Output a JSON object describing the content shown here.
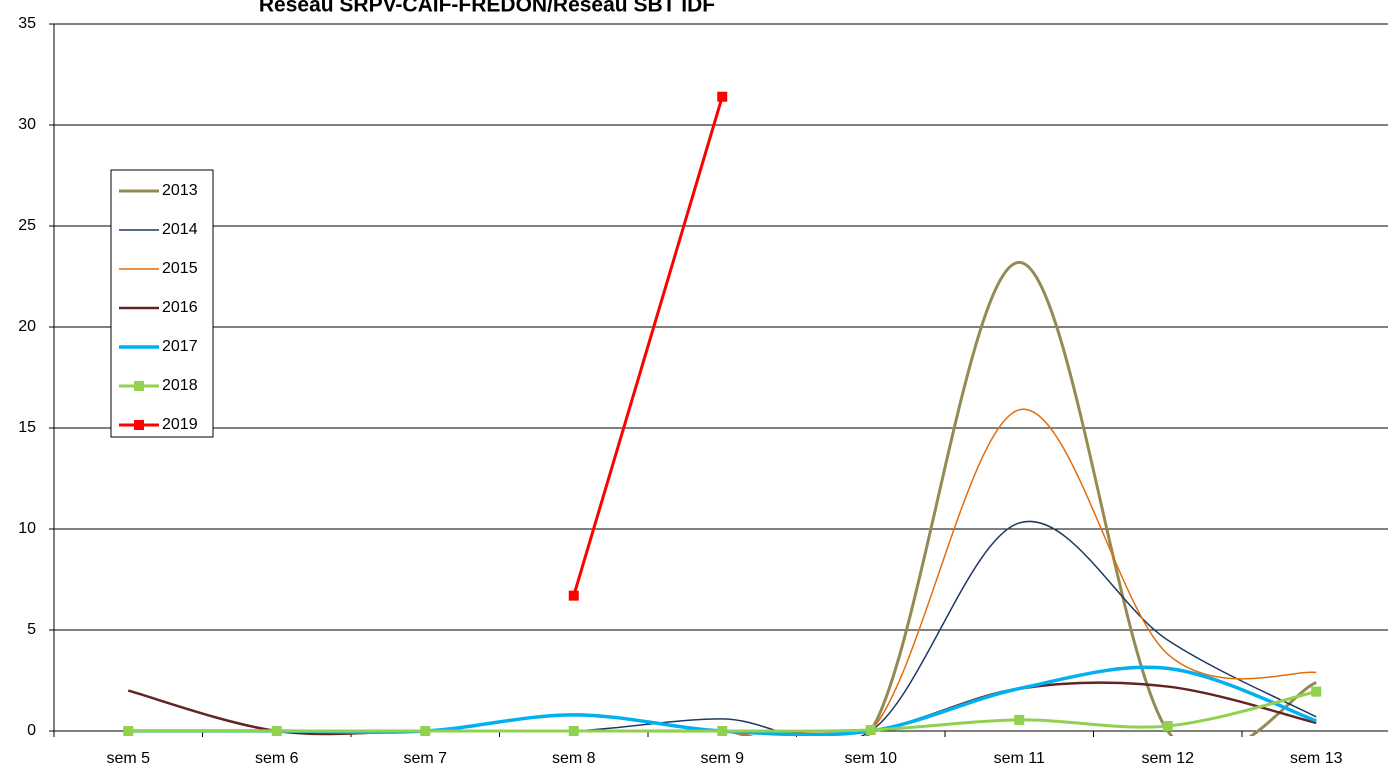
{
  "chart_data": {
    "type": "line",
    "title": "Réseau SRPV-CAIF-FREDON/Réseau SBT IDF",
    "categories": [
      "sem 5",
      "sem 6",
      "sem 7",
      "sem 8",
      "sem 9",
      "sem 10",
      "sem 11",
      "sem 12",
      "sem 13"
    ],
    "series": [
      {
        "name": "2013",
        "color": "#948a54",
        "values": [
          0,
          0,
          0,
          0,
          0,
          0,
          23.2,
          0,
          2.4
        ]
      },
      {
        "name": "2014",
        "color": "#1f3864",
        "values": [
          0,
          0,
          0,
          0,
          0.6,
          0,
          10.3,
          4.5,
          0.7
        ]
      },
      {
        "name": "2015",
        "color": "#e46c0a",
        "values": [
          0,
          0,
          0,
          0,
          0,
          0,
          15.9,
          3.8,
          2.9
        ]
      },
      {
        "name": "2016",
        "color": "#632423",
        "values": [
          2,
          0,
          0,
          0,
          0,
          0,
          2.1,
          2.2,
          0.4
        ]
      },
      {
        "name": "2017",
        "color": "#00b0f0",
        "values": [
          0,
          0,
          0,
          0.8,
          0,
          0,
          2.1,
          3.1,
          0.5
        ]
      },
      {
        "name": "2018",
        "color": "#92d050",
        "marker": "square",
        "values": [
          0,
          0,
          0,
          0,
          0,
          0.05,
          0.55,
          0.25,
          1.95
        ]
      },
      {
        "name": "2019",
        "color": "#ff0000",
        "marker": "square",
        "values": [
          null,
          null,
          null,
          6.7,
          31.4,
          null,
          null,
          null,
          null
        ]
      }
    ],
    "ylim": [
      0,
      35
    ],
    "yticks": [
      0,
      5,
      10,
      15,
      20,
      25,
      30,
      35
    ],
    "grid": true,
    "smooth": true,
    "legend": "left"
  }
}
